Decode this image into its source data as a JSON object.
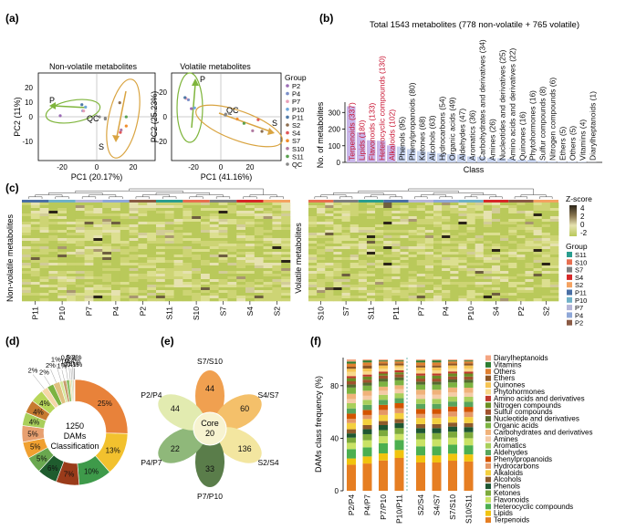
{
  "panels": {
    "a": {
      "label": "(a)",
      "left": {
        "title": "Non-volatile metabolites",
        "xlabel": "PC1 (20.17%)",
        "ylabel": "PC2 (11%)",
        "xticks": [
          "-20",
          "0",
          "20"
        ],
        "yticks": [
          "20",
          "10",
          "0",
          "-10"
        ],
        "groups": [
          "P",
          "QC",
          "S"
        ]
      },
      "right": {
        "title": "Volatile metabolites",
        "xlabel": "PC1 (41.16%)",
        "ylabel": "PC2 (25.23%)",
        "xticks": [
          "-20",
          "0",
          "20"
        ],
        "yticks": [
          "20",
          "0",
          "-20"
        ],
        "groups": [
          "P",
          "QC",
          "S"
        ],
        "legend_title": "Group",
        "legend_items": [
          "P2",
          "P4",
          "P7",
          "P10",
          "P11",
          "S2",
          "S4",
          "S7",
          "S10",
          "S11",
          "QC"
        ],
        "legend_colors": [
          "#9b6bb5",
          "#7b8fc9",
          "#e8a0b8",
          "#6fa8dc",
          "#4e79a7",
          "#8c6d4f",
          "#e15759",
          "#f28e2b",
          "#b07aa1",
          "#59a14f",
          "#888888"
        ]
      }
    },
    "b": {
      "label": "(b)",
      "title": "Total 1543 metabolites (778 non-volatile + 765 volatile)",
      "ylabel": "No. of metabolites",
      "xlabel": "Class",
      "yticks": [
        "300",
        "200",
        "100",
        "0"
      ],
      "highlight_count": 5,
      "categories": [
        {
          "name": "Terpenoids",
          "count": 337
        },
        {
          "name": "Lipids",
          "count": 180
        },
        {
          "name": "Flavonoids",
          "count": 133
        },
        {
          "name": "Heterocyclic compounds",
          "count": 130
        },
        {
          "name": "Alkaloids",
          "count": 102
        },
        {
          "name": "Phenols",
          "count": 95
        },
        {
          "name": "Phenylpropanoids",
          "count": 80
        },
        {
          "name": "Ketones",
          "count": 68
        },
        {
          "name": "Alcohols",
          "count": 63
        },
        {
          "name": "Hydrocarbons",
          "count": 54
        },
        {
          "name": "Organic acids",
          "count": 49
        },
        {
          "name": "Aldehydes",
          "count": 47
        },
        {
          "name": "Aromatics",
          "count": 36
        },
        {
          "name": "Carbohydrates and derivatives",
          "count": 34
        },
        {
          "name": "Amines",
          "count": 26
        },
        {
          "name": "Nucleotides and derivatives",
          "count": 25
        },
        {
          "name": "Amino acids and derivatives",
          "count": 22
        },
        {
          "name": "Quinones",
          "count": 16
        },
        {
          "name": "Phytohormones",
          "count": 16
        },
        {
          "name": "Sulfur compounds",
          "count": 8
        },
        {
          "name": "Nitrogen compounds",
          "count": 6
        },
        {
          "name": "Ethers",
          "count": 5
        },
        {
          "name": "Others",
          "count": 5
        },
        {
          "name": "Vitamins",
          "count": 4
        },
        {
          "name": "Diarylheptanoids",
          "count": 1
        }
      ]
    },
    "c": {
      "label": "(c)",
      "left_ylabel": "Non-volatile metabolites",
      "right_ylabel": "Volatile metabolites",
      "left_samples": [
        "P11",
        "P10",
        "P7",
        "P4",
        "P2",
        "S11",
        "S10",
        "S7",
        "S4",
        "S2"
      ],
      "right_samples": [
        "S10",
        "S7",
        "S11",
        "P11",
        "P7",
        "P4",
        "P10",
        "S4",
        "P2",
        "S2"
      ],
      "zscore_title": "Z-score",
      "zscore_ticks": [
        "4",
        "2",
        "0",
        "-2"
      ],
      "group_title": "Group",
      "group_items": [
        "S11",
        "S10",
        "S7",
        "S4",
        "S2",
        "P11",
        "P10",
        "P7",
        "P4",
        "P2"
      ],
      "group_colors": [
        "#2a9d8f",
        "#e76f51",
        "#7f7f7f",
        "#d62828",
        "#f4a261",
        "#4a6fa5",
        "#6fb1c8",
        "#b5b5d8",
        "#8fa8d8",
        "#8a5a44"
      ]
    },
    "d": {
      "label": "(d)",
      "center_lines": [
        "1250",
        "DAMs",
        "Classification"
      ],
      "segments": [
        {
          "label": "25%",
          "value": 25,
          "color": "#e8823a"
        },
        {
          "label": "13%",
          "value": 13,
          "color": "#f2c12e"
        },
        {
          "label": "10%",
          "value": 10,
          "color": "#3e9a4a"
        },
        {
          "label": "7%",
          "value": 7,
          "color": "#9a3b1a"
        },
        {
          "label": "6%",
          "value": 6,
          "color": "#1f5c2e"
        },
        {
          "label": "5%",
          "value": 5,
          "color": "#6aa84f"
        },
        {
          "label": "5%",
          "value": 5,
          "color": "#f0a030"
        },
        {
          "label": "5%",
          "value": 5,
          "color": "#e8a070"
        },
        {
          "label": "4%",
          "value": 4,
          "color": "#a9cf5b"
        },
        {
          "label": "4%",
          "value": 4,
          "color": "#c77b30"
        },
        {
          "label": "4%",
          "value": 4,
          "color": "#b7d65a"
        },
        {
          "label": "2%",
          "value": 2,
          "color": "#f5d7a8"
        },
        {
          "label": "2%",
          "value": 2,
          "color": "#7cb342"
        },
        {
          "label": "2%",
          "value": 2,
          "color": "#e0c080"
        },
        {
          "label": "1%",
          "value": 1,
          "color": "#d4e89c"
        },
        {
          "label": "1%",
          "value": 1,
          "color": "#c79a6b"
        },
        {
          "label": "1%",
          "value": 1,
          "color": "#8fbf6a"
        },
        {
          "label": "0.5%",
          "value": 0.5,
          "color": "#eed9a0"
        },
        {
          "label": "0.4%",
          "value": 0.4,
          "color": "#b2d89a"
        },
        {
          "label": "0.4%",
          "value": 0.4,
          "color": "#d9b58a"
        },
        {
          "label": "0.2%",
          "value": 0.2,
          "color": "#f2b880"
        },
        {
          "label": "0.1%",
          "value": 0.1,
          "color": "#a07050"
        }
      ]
    },
    "e": {
      "label": "(e)",
      "core_label": "Core",
      "core_value": "20",
      "petals": [
        {
          "name": "S7/S10",
          "value": "44",
          "color": "#f0a050"
        },
        {
          "name": "S4/S7",
          "value": "60",
          "color": "#f4c06a"
        },
        {
          "name": "S2/S4",
          "value": "136",
          "color": "#f3e6a0"
        },
        {
          "name": "P7/P10",
          "value": "33",
          "color": "#5a7d4a"
        },
        {
          "name": "P4/P7",
          "value": "22",
          "color": "#8fb87a"
        },
        {
          "name": "P2/P4",
          "value": "44",
          "color": "#e2ebb0"
        }
      ]
    },
    "f": {
      "label": "(f)",
      "ylabel": "DAMs class frequency (%)",
      "yticks": [
        "80",
        "40",
        "0"
      ],
      "comparisons": [
        "P2/P4",
        "P4/P7",
        "P7/P10",
        "P10/P11",
        "S2/S4",
        "S4/S7",
        "S7/S10",
        "S10/S11"
      ],
      "legend": [
        {
          "name": "Diarylheptanoids",
          "color": "#f4a582"
        },
        {
          "name": "Vitamins",
          "color": "#2e7d32"
        },
        {
          "name": "Others",
          "color": "#e08030"
        },
        {
          "name": "Ethers",
          "color": "#8d5524"
        },
        {
          "name": "Quinones",
          "color": "#f6c453"
        },
        {
          "name": "Phytohormones",
          "color": "#f9d98b"
        },
        {
          "name": "Amino acids and derivatives",
          "color": "#c0392b"
        },
        {
          "name": "Nitrogen compounds",
          "color": "#6b8e23"
        },
        {
          "name": "Sulfur compounds",
          "color": "#a0522d"
        },
        {
          "name": "Nucleotide and derivatives",
          "color": "#556b2f"
        },
        {
          "name": "Organic acids",
          "color": "#7cb342"
        },
        {
          "name": "Carbohydrates and derivatives",
          "color": "#f0b27a"
        },
        {
          "name": "Amines",
          "color": "#f5cba7"
        },
        {
          "name": "Aromatics",
          "color": "#a9cf5b"
        },
        {
          "name": "Aldehydes",
          "color": "#58a55c"
        },
        {
          "name": "Phenylpropanoids",
          "color": "#d35400"
        },
        {
          "name": "Hydrocarbons",
          "color": "#e59866"
        },
        {
          "name": "Alkaloids",
          "color": "#f4d03f"
        },
        {
          "name": "Alcohols",
          "color": "#8e5a2b"
        },
        {
          "name": "Phenols",
          "color": "#1e5631"
        },
        {
          "name": "Ketones",
          "color": "#7daa3c"
        },
        {
          "name": "Flavonoids",
          "color": "#c9e265"
        },
        {
          "name": "Heterocyclic compounds",
          "color": "#4caf50"
        },
        {
          "name": "Lipids",
          "color": "#f1c40f"
        },
        {
          "name": "Terpenoids",
          "color": "#e67e22"
        }
      ],
      "stack_shares": [
        [
          2,
          2,
          3,
          2,
          3,
          4,
          2,
          3,
          3,
          3,
          6,
          5,
          4,
          5,
          5,
          5,
          4,
          6,
          4,
          4,
          5,
          6,
          9,
          6,
          25
        ],
        [
          1,
          2,
          3,
          3,
          3,
          3,
          2,
          3,
          3,
          3,
          5,
          5,
          4,
          5,
          5,
          5,
          4,
          6,
          4,
          5,
          6,
          7,
          9,
          7,
          27
        ],
        [
          1,
          1,
          2,
          2,
          3,
          3,
          2,
          2,
          3,
          3,
          5,
          4,
          4,
          5,
          5,
          5,
          5,
          6,
          4,
          5,
          6,
          7,
          10,
          7,
          30
        ],
        [
          1,
          1,
          2,
          2,
          2,
          3,
          2,
          2,
          3,
          3,
          5,
          4,
          4,
          5,
          5,
          5,
          5,
          6,
          4,
          5,
          6,
          6,
          10,
          8,
          33
        ],
        [
          1,
          2,
          3,
          2,
          3,
          3,
          2,
          3,
          3,
          3,
          5,
          5,
          4,
          5,
          5,
          5,
          4,
          6,
          4,
          5,
          6,
          7,
          9,
          7,
          28
        ],
        [
          1,
          2,
          3,
          2,
          3,
          3,
          2,
          3,
          3,
          3,
          5,
          5,
          4,
          5,
          5,
          5,
          4,
          6,
          4,
          5,
          6,
          7,
          9,
          7,
          28
        ],
        [
          1,
          1,
          2,
          2,
          3,
          3,
          2,
          3,
          3,
          3,
          5,
          5,
          4,
          5,
          5,
          5,
          5,
          6,
          4,
          5,
          6,
          7,
          9,
          7,
          30
        ],
        [
          1,
          1,
          2,
          2,
          3,
          3,
          2,
          3,
          3,
          3,
          5,
          5,
          4,
          5,
          5,
          5,
          5,
          6,
          4,
          5,
          6,
          7,
          9,
          7,
          29
        ]
      ]
    }
  }
}
